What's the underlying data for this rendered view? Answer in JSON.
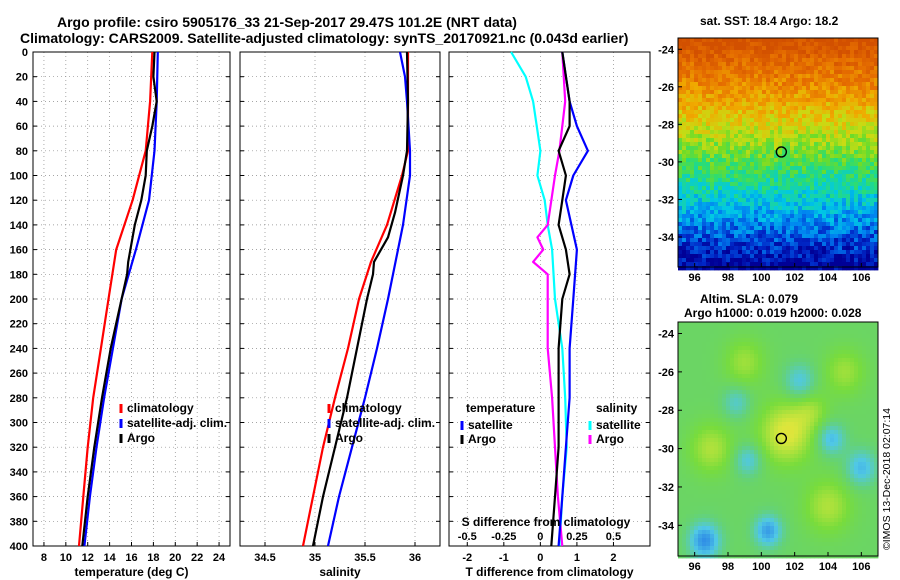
{
  "header": {
    "line1": "Argo profile: csiro 5905176_33 21-Sep-2017 29.47S 101.2E (NRT data)",
    "line2": "Climatology: CARS2009. Satellite-adjusted climatology: synTS_20170921.nc (0.043d earlier)"
  },
  "colors": {
    "climatology": "#ff0000",
    "satellite": "#0000ff",
    "argo": "#000000",
    "s_climatology": "#ff00ff",
    "s_satellite": "#00ffff"
  },
  "depth_ticks": [
    "0",
    "20",
    "40",
    "60",
    "80",
    "100",
    "120",
    "140",
    "160",
    "180",
    "200",
    "220",
    "240",
    "260",
    "280",
    "300",
    "320",
    "340",
    "360",
    "380",
    "400"
  ],
  "chart_data": [
    {
      "type": "line",
      "id": "temperature",
      "xlabel": "temperature (deg C)",
      "ylabel": "depth",
      "xlim": [
        7,
        25
      ],
      "ylim": [
        400,
        0
      ],
      "xticks": [
        8,
        10,
        12,
        14,
        16,
        18,
        20,
        22,
        24
      ],
      "xtick_labels": [
        "8",
        "10",
        "12",
        "14",
        "16",
        "18",
        "20",
        "22",
        "24"
      ],
      "legend": [
        "climatology",
        "satellite-adj. clim.",
        "Argo"
      ],
      "series": [
        {
          "name": "climatology",
          "depth": [
            0,
            40,
            80,
            120,
            160,
            200,
            240,
            280,
            320,
            360,
            400
          ],
          "values": [
            17.9,
            17.7,
            17.3,
            16.1,
            14.6,
            13.9,
            13.2,
            12.5,
            12.0,
            11.6,
            11.2
          ]
        },
        {
          "name": "satellite-adj. clim.",
          "depth": [
            0,
            40,
            80,
            120,
            160,
            200,
            240,
            280,
            320,
            360,
            400
          ],
          "values": [
            18.4,
            18.3,
            18.1,
            17.6,
            16.4,
            15.1,
            14.3,
            13.5,
            12.8,
            12.2,
            11.7
          ]
        },
        {
          "name": "Argo",
          "depth": [
            0,
            20,
            40,
            60,
            80,
            100,
            120,
            140,
            160,
            170,
            180,
            200,
            240,
            280,
            320,
            360,
            400
          ],
          "values": [
            18.1,
            18.0,
            18.3,
            17.9,
            17.4,
            17.3,
            16.9,
            16.3,
            15.9,
            15.7,
            15.6,
            15.1,
            14.1,
            13.3,
            12.6,
            12.0,
            11.5
          ]
        }
      ]
    },
    {
      "type": "line",
      "id": "salinity",
      "xlabel": "salinity",
      "ylabel": "depth",
      "xlim": [
        34.25,
        36.25
      ],
      "ylim": [
        400,
        0
      ],
      "xticks": [
        34.5,
        35,
        35.5,
        36
      ],
      "xtick_labels": [
        "34.5",
        "35",
        "35.5",
        "36"
      ],
      "legend": [
        "climatology",
        "satellite-adj. clim.",
        "Argo"
      ],
      "series": [
        {
          "name": "climatology",
          "depth": [
            0,
            40,
            80,
            100,
            140,
            170,
            200,
            240,
            280,
            320,
            360,
            400
          ],
          "values": [
            35.93,
            35.93,
            35.93,
            35.87,
            35.72,
            35.56,
            35.44,
            35.33,
            35.2,
            35.08,
            34.98,
            34.88
          ]
        },
        {
          "name": "satellite-adj. clim.",
          "depth": [
            0,
            20,
            40,
            80,
            100,
            140,
            160,
            200,
            240,
            280,
            320,
            360,
            400
          ],
          "values": [
            35.85,
            35.9,
            35.92,
            35.95,
            35.95,
            35.88,
            35.83,
            35.73,
            35.62,
            35.5,
            35.37,
            35.24,
            35.13
          ]
        },
        {
          "name": "Argo",
          "depth": [
            0,
            40,
            80,
            100,
            130,
            150,
            160,
            170,
            180,
            200,
            240,
            280,
            320,
            360,
            400
          ],
          "values": [
            35.92,
            35.93,
            35.92,
            35.88,
            35.8,
            35.73,
            35.66,
            35.59,
            35.58,
            35.52,
            35.42,
            35.32,
            35.2,
            35.08,
            34.98
          ]
        }
      ]
    },
    {
      "type": "line",
      "id": "difference",
      "xlabel": "T difference from climatology",
      "x2label": "S difference from climatology",
      "ylabel": "depth",
      "xlim": [
        -2.5,
        3
      ],
      "ylim": [
        400,
        0
      ],
      "xticks": [
        -2,
        -1,
        0,
        1,
        2
      ],
      "xtick_labels": [
        "-2",
        "-1",
        "0",
        "1",
        "2"
      ],
      "x2ticks": [
        -0.5,
        -0.25,
        0,
        0.25,
        0.5
      ],
      "x2tick_labels": [
        "-0.5",
        "-0.25",
        "0",
        "0.25",
        "0.5"
      ],
      "legend_left_title": "temperature",
      "legend_right_title": "salinity",
      "legend_left": [
        "satellite",
        "Argo"
      ],
      "legend_right": [
        "satellite",
        "Argo"
      ],
      "series": [
        {
          "name": "temperature satellite",
          "depth": [
            0,
            40,
            60,
            80,
            100,
            120,
            160,
            200,
            240,
            280,
            320,
            360,
            400
          ],
          "values": [
            0.6,
            0.8,
            1.0,
            1.3,
            0.9,
            0.7,
            1.0,
            0.9,
            0.8,
            0.8,
            0.7,
            0.6,
            0.5
          ]
        },
        {
          "name": "temperature Argo",
          "depth": [
            0,
            40,
            60,
            80,
            100,
            120,
            140,
            160,
            180,
            200,
            240,
            280,
            320,
            360,
            400
          ],
          "values": [
            0.6,
            0.8,
            0.8,
            0.5,
            0.7,
            0.6,
            0.5,
            0.7,
            0.8,
            0.6,
            0.5,
            0.5,
            0.5,
            0.4,
            0.3
          ]
        },
        {
          "name": "salinity satellite",
          "depth": [
            0,
            20,
            40,
            80,
            100,
            120,
            140,
            160,
            200,
            240,
            280,
            320,
            360,
            400
          ],
          "values": [
            -0.2,
            -0.1,
            -0.05,
            0.0,
            -0.02,
            0.03,
            0.05,
            0.08,
            0.1,
            0.15,
            0.17,
            0.18,
            0.15,
            0.13
          ]
        },
        {
          "name": "salinity Argo",
          "depth": [
            0,
            40,
            80,
            100,
            140,
            150,
            160,
            170,
            180,
            200,
            240,
            280,
            320,
            360,
            400
          ],
          "values": [
            0.15,
            0.17,
            0.13,
            0.1,
            0.05,
            -0.02,
            0.02,
            -0.05,
            0.05,
            0.05,
            0.05,
            0.08,
            0.1,
            0.12,
            0.15
          ]
        }
      ]
    },
    {
      "type": "heatmap",
      "id": "sst-map",
      "title": "sat. SST: 18.4  Argo: 18.2",
      "xticks": [
        96,
        98,
        100,
        102,
        104,
        106
      ],
      "xtick_labels": [
        "96",
        "98",
        "100",
        "102",
        "104",
        "106"
      ],
      "yticks": [
        -24,
        -26,
        -28,
        -30,
        -32,
        -34
      ],
      "ytick_labels": [
        "-24",
        "-26",
        "-28",
        "-30",
        "-32",
        "-34"
      ],
      "xlim": [
        95,
        107
      ],
      "ylim": [
        -35.6,
        -23.4
      ],
      "float_position": [
        101.2,
        -29.47
      ]
    },
    {
      "type": "heatmap",
      "id": "sla-map",
      "title1": "Altim. SLA: 0.079",
      "title2": "Argo h1000: 0.019 h2000: 0.028",
      "xticks": [
        96,
        98,
        100,
        102,
        104,
        106
      ],
      "xtick_labels": [
        "96",
        "98",
        "100",
        "102",
        "104",
        "106"
      ],
      "yticks": [
        -24,
        -26,
        -28,
        -30,
        -32,
        -34
      ],
      "ytick_labels": [
        "-24",
        "-26",
        "-28",
        "-30",
        "-32",
        "-34"
      ],
      "xlim": [
        95,
        107
      ],
      "ylim": [
        -35.6,
        -23.4
      ],
      "float_position": [
        101.2,
        -29.47
      ]
    }
  ],
  "watermark": "©IMOS 13-Dec-2018 02:07:14"
}
